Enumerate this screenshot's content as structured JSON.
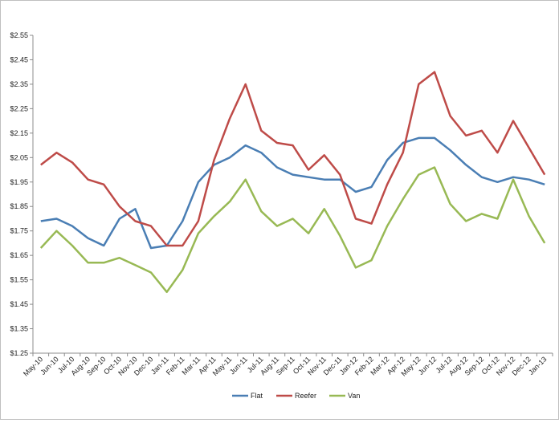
{
  "chart_data": {
    "type": "line",
    "title": "",
    "xlabel": "",
    "ylabel": "",
    "ylim": [
      1.25,
      2.55
    ],
    "y_ticks": [
      "$1.25",
      "$1.35",
      "$1.45",
      "$1.55",
      "$1.65",
      "$1.75",
      "$1.85",
      "$1.95",
      "$2.05",
      "$2.15",
      "$2.25",
      "$2.35",
      "$2.45",
      "$2.55"
    ],
    "grid": false,
    "legend_position": "bottom",
    "categories": [
      "May-10",
      "Jun-10",
      "Jul-10",
      "Aug-10",
      "Sep-10",
      "Oct-10",
      "Nov-10",
      "Dec-10",
      "Jan-11",
      "Feb-11",
      "Mar-11",
      "Apr-11",
      "May-11",
      "Jun-11",
      "Jul-11",
      "Aug-11",
      "Sep-11",
      "Oct-11",
      "Nov-11",
      "Dec-11",
      "Jan-12",
      "Feb-12",
      "Mar-12",
      "Apr-12",
      "May-12",
      "Jun-12",
      "Jul-12",
      "Aug-12",
      "Sep-12",
      "Oct-12",
      "Nov-12",
      "Dec-12",
      "Jan-13"
    ],
    "series": [
      {
        "name": "Flat",
        "color": "#4a7eb4",
        "values": [
          1.79,
          1.8,
          1.77,
          1.72,
          1.69,
          1.8,
          1.84,
          1.68,
          1.69,
          1.79,
          1.95,
          2.02,
          2.05,
          2.1,
          2.07,
          2.01,
          1.98,
          1.97,
          1.96,
          1.96,
          1.91,
          1.93,
          2.04,
          2.11,
          2.13,
          2.13,
          2.08,
          2.02,
          1.97,
          1.95,
          1.97,
          1.96,
          1.94
        ]
      },
      {
        "name": "Reefer",
        "color": "#be4b48",
        "values": [
          2.02,
          2.07,
          2.03,
          1.96,
          1.94,
          1.85,
          1.79,
          1.77,
          1.69,
          1.69,
          1.79,
          2.04,
          2.21,
          2.35,
          2.16,
          2.11,
          2.1,
          2.0,
          2.06,
          1.98,
          1.8,
          1.78,
          1.94,
          2.07,
          2.35,
          2.4,
          2.22,
          2.14,
          2.16,
          2.07,
          2.2,
          2.09,
          1.98
        ]
      },
      {
        "name": "Van",
        "color": "#98b954",
        "values": [
          1.68,
          1.75,
          1.69,
          1.62,
          1.62,
          1.64,
          1.61,
          1.58,
          1.5,
          1.59,
          1.74,
          1.81,
          1.87,
          1.96,
          1.83,
          1.77,
          1.8,
          1.74,
          1.84,
          1.73,
          1.6,
          1.63,
          1.77,
          1.88,
          1.98,
          2.01,
          1.86,
          1.79,
          1.82,
          1.8,
          1.96,
          1.81,
          1.7
        ]
      }
    ]
  }
}
